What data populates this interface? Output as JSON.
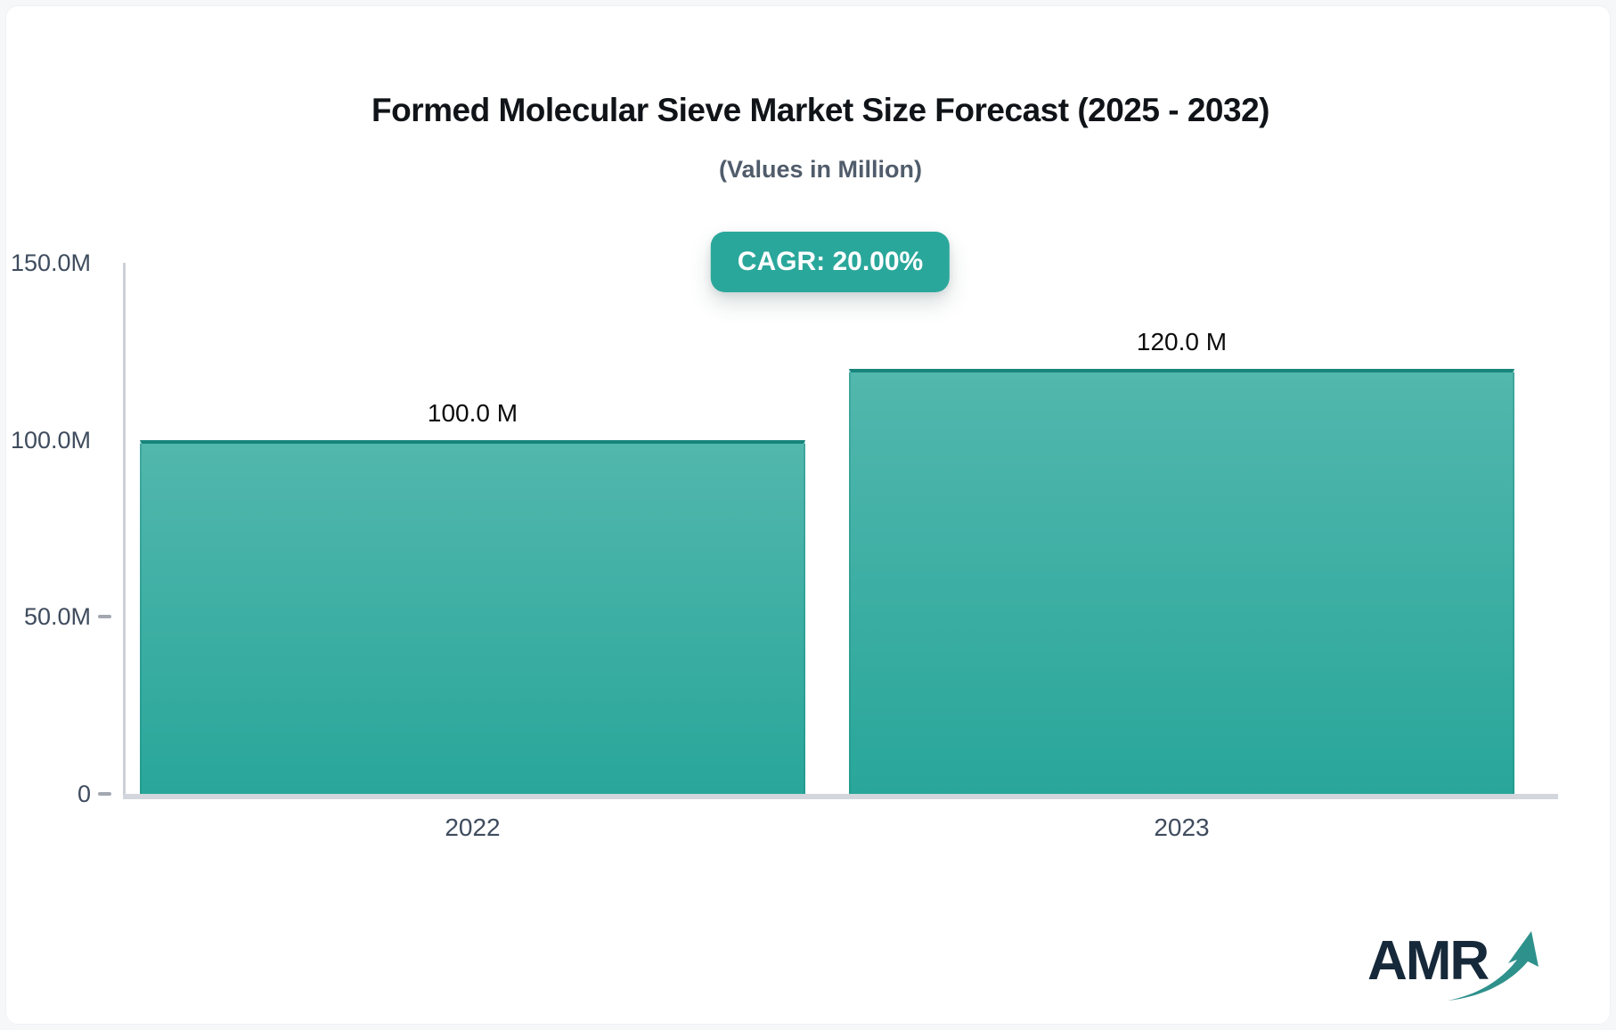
{
  "chart_data": {
    "type": "bar",
    "title": "Formed Molecular Sieve Market Size Forecast (2025 - 2032)",
    "subtitle": "(Values in Million)",
    "annotation": "CAGR: 20.00%",
    "categories": [
      "2022",
      "2023"
    ],
    "values": [
      100.0,
      120.0
    ],
    "value_labels": [
      "100.0 M",
      "120.0 M"
    ],
    "unit": "Million",
    "xlabel": "",
    "ylabel": "",
    "ylim": [
      0,
      150
    ],
    "y_ticks": [
      {
        "label": "150.0M",
        "value": 150,
        "dash": false
      },
      {
        "label": "100.0M",
        "value": 100,
        "dash": false
      },
      {
        "label": "50.0M",
        "value": 50,
        "dash": true
      },
      {
        "label": "0",
        "value": 0,
        "dash": true
      }
    ],
    "grid": false,
    "legend": "none"
  },
  "colors": {
    "badge_bg": "#2aa79b",
    "badge_text": "#ffffff",
    "bar_gradient_top": "#52b7ad",
    "bar_gradient_bottom": "#29a69a",
    "bar_edge": "#17857c",
    "axis": "#ccd0d7",
    "tick_label": "#3f4c5e",
    "title": "#101418",
    "subtitle": "#505c6b",
    "logo_text": "#16293a",
    "logo_arrow": "#2f918c"
  },
  "logo": {
    "text": "AMR"
  }
}
